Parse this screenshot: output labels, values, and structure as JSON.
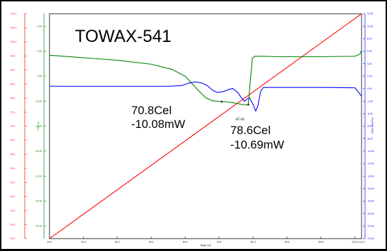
{
  "chart_data": {
    "type": "line",
    "title": "TOWAX-541",
    "xlabel": "Temp Cel",
    "ylabel_left_temp": "",
    "ylabel_dta": "DTA uV",
    "ylabel_dsc": "DDSC mW/Cel",
    "xlim": [
      20,
      112
    ],
    "x_ticks": [
      "20.0",
      "30.0",
      "40.0",
      "50.0",
      "60.0",
      "70.0",
      "80.0",
      "90.0",
      "100.0",
      "110.0",
      "112.0"
    ],
    "temp_axis": {
      "color": "#ff0000",
      "ylim": [
        30,
        110
      ],
      "ticks": [
        "110.0",
        "105.0",
        "100.0",
        "95.0",
        "90.0",
        "85.0",
        "80.0",
        "75.0",
        "70.0",
        "65.0",
        "60.0",
        "55.0",
        "50.0",
        "45.0",
        "40.0",
        "35.0",
        "30.0"
      ]
    },
    "dta_axis": {
      "color": "#008000",
      "ylim": [
        -37.5,
        7.5
      ],
      "ticks": [
        "5.00",
        "0.00",
        "-5.00",
        "-10.00",
        "-15.00",
        "-20.00",
        "-25.00",
        "-30.00",
        "-35.00"
      ]
    },
    "dsc_axis": {
      "color": "#0000ff",
      "ylim": [
        -24,
        12
      ],
      "ticks": [
        "12.00",
        "10.00",
        "8.00",
        "6.00",
        "4.00",
        "2.00",
        "0.00",
        "-2.00",
        "-4.00",
        "-6.00",
        "-8.00",
        "-10.00",
        "-12.00",
        "-14.00",
        "-16.00",
        "-18.00",
        "-20.00",
        "-22.00",
        "-24.00"
      ]
    },
    "series": [
      {
        "color": "#ff0000",
        "axis": "temp",
        "x": [
          20,
          112
        ],
        "y": [
          30,
          110
        ]
      },
      {
        "color": "#008000",
        "axis": "dta",
        "x": [
          20,
          30,
          40,
          50,
          56,
          60,
          63,
          66,
          68,
          70,
          70.8,
          72,
          74,
          76,
          77.5,
          78.6,
          79.2,
          79.8,
          80.5,
          82,
          88,
          100,
          110,
          111.5,
          112
        ],
        "y": [
          -0.8,
          -1.3,
          -1.8,
          -2.6,
          -3.6,
          -5.0,
          -7.2,
          -9.3,
          -9.9,
          -10.05,
          -10.08,
          -10.1,
          -10.3,
          -10.55,
          -10.75,
          -10.69,
          -6.0,
          -1.4,
          -1.0,
          -1.0,
          -1.1,
          -1.1,
          -1.0,
          -0.6,
          0.2
        ]
      },
      {
        "color": "#0000ff",
        "axis": "dsc",
        "x": [
          20,
          40,
          55,
          59,
          61,
          63,
          65,
          66.5,
          68,
          69.5,
          71,
          72.5,
          74,
          75.5,
          76.5,
          77.5,
          78.3,
          79,
          80,
          80.8,
          81.5,
          82.2,
          83,
          84,
          100,
          110,
          111,
          112
        ],
        "y": [
          0.4,
          0.4,
          0.4,
          0.5,
          0.9,
          1.1,
          0.9,
          0.5,
          -0.2,
          -0.6,
          -0.5,
          -0.2,
          0.05,
          -0.6,
          -1.4,
          -2.0,
          -1.6,
          -1.5,
          -2.5,
          -3.6,
          -2.6,
          -0.5,
          0.2,
          0.2,
          0.2,
          0.15,
          -0.5,
          -1.2
        ]
      }
    ],
    "annotations": [
      {
        "text": "70.8Cel",
        "x": 70.8,
        "y_dta": -10.08,
        "marker_x": 70.8
      },
      {
        "text": "-10.08mW"
      },
      {
        "text": "78.6Cel",
        "x": 78.6,
        "y_dta": -10.69,
        "marker_x": 78.6
      },
      {
        "text": "-10.69mW"
      },
      {
        "text": "87.92"
      }
    ]
  }
}
